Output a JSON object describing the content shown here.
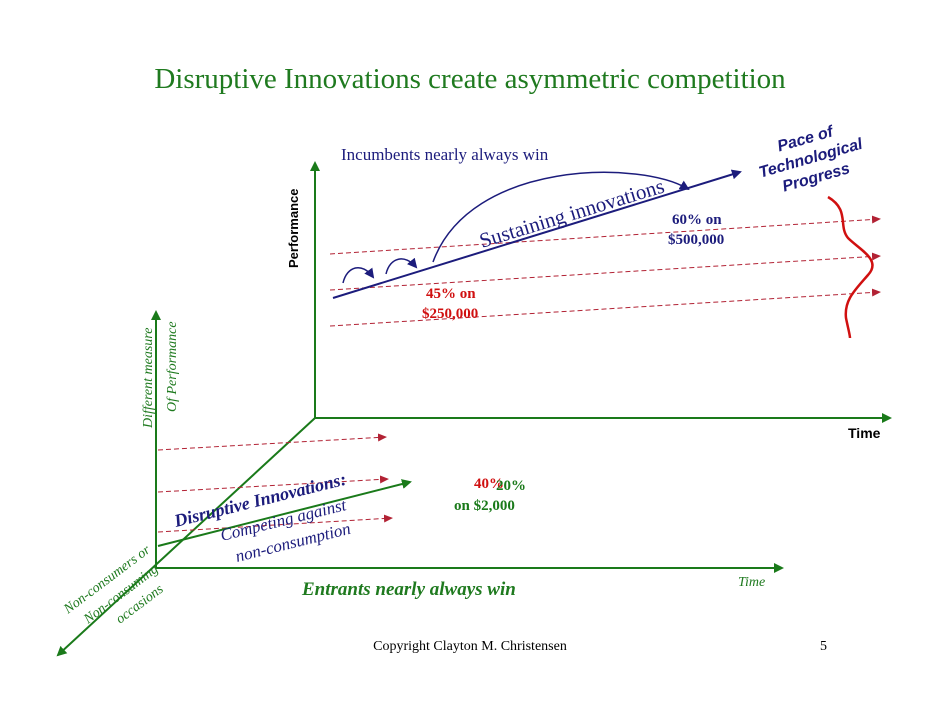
{
  "title": "Disruptive Innovations create asymmetric competition",
  "upper_plane": {
    "y_axis_label": "Performance",
    "x_axis_label": "Time",
    "incumbents_label": "Incumbents nearly always win",
    "sustaining_label": "Sustaining innovations",
    "pace_label_line1": "Pace of",
    "pace_label_line2": "Technological",
    "pace_label_line3": "Progress",
    "point_45_line1": "45% on",
    "point_45_line2": "$250,000",
    "point_60_line1": "60% on",
    "point_60_line2": "$500,000"
  },
  "lower_plane": {
    "y_axis_label_line1": "Different measure",
    "y_axis_label_line2": "Of Performance",
    "x_axis_label": "Time",
    "disruptive_label": "Disruptive Innovations:",
    "competing_label_line1": "Competing against",
    "competing_label_line2": "non-consumption",
    "entrants_label": "Entrants nearly always win",
    "point_overlap_a": "40%",
    "point_overlap_b": "20%",
    "point_overlap_c": "on $2,000",
    "depth_axis_line1": "Non-consumers or",
    "depth_axis_line2": "Non-consuming",
    "depth_axis_line3": "occasions"
  },
  "footer": {
    "copyright": "Copyright Clayton M. Christensen",
    "page_number": "5"
  },
  "colors": {
    "title": "#1f7a1f",
    "axis": "#1a7a1a",
    "dashed_arrow": "#b22234",
    "navy": "#1c1c7c",
    "red": "#d01010"
  }
}
